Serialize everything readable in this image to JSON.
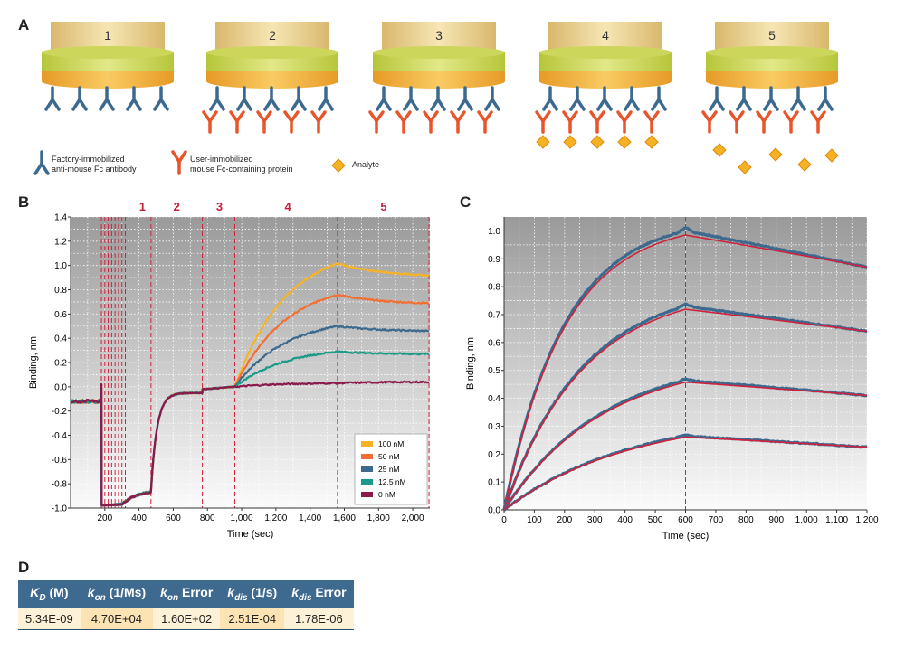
{
  "panels": {
    "a": "A",
    "b": "B",
    "c": "C",
    "d": "D"
  },
  "panel_a": {
    "steps": [
      "1",
      "2",
      "3",
      "4",
      "5"
    ],
    "legend": {
      "factory_line1": "Factory-immobilized",
      "factory_line2": "anti-mouse Fc antibody",
      "user_line1": "User-immobilized",
      "user_line2": "mouse Fc-containing protein",
      "analyte": "Analyte"
    },
    "colors": {
      "antibody": "#3c6a8e",
      "protein": "#e8552b",
      "analyte": "#f5b323"
    }
  },
  "chart_data": [
    {
      "id": "B",
      "type": "line",
      "xlabel": "Time (sec)",
      "ylabel": "Binding, nm",
      "xlim": [
        0,
        2100
      ],
      "ylim": [
        -1.0,
        1.4
      ],
      "xticks": [
        "200",
        "400",
        "600",
        "800",
        "1,000",
        "1,200",
        "1,400",
        "1,600",
        "1,800",
        "2,000"
      ],
      "xtick_values": [
        200,
        400,
        600,
        800,
        1000,
        1200,
        1400,
        1600,
        1800,
        2000
      ],
      "yticks": [
        "-1.0",
        "-0.8",
        "-0.6",
        "-0.4",
        "-0.2",
        "0.0",
        "0.2",
        "0.4",
        "0.6",
        "0.8",
        "1.0",
        "1.2",
        "1.4"
      ],
      "ytick_values": [
        -1.0,
        -0.8,
        -0.6,
        -0.4,
        -0.2,
        0.0,
        0.2,
        0.4,
        0.6,
        0.8,
        1.0,
        1.2,
        1.4
      ],
      "grid": true,
      "legend_position": "bottom-right",
      "step_labels": [
        {
          "label": "1",
          "x": 420
        },
        {
          "label": "2",
          "x": 620
        },
        {
          "label": "3",
          "x": 870
        },
        {
          "label": "4",
          "x": 1270
        },
        {
          "label": "5",
          "x": 1830
        }
      ],
      "step_boundaries": [
        0,
        180,
        200,
        220,
        240,
        260,
        280,
        300,
        320,
        470,
        770,
        960,
        1560,
        2095
      ],
      "association_start": 960,
      "dissociation_start": 1560,
      "series": [
        {
          "name": "100 nM",
          "color": "#f7b324",
          "plateau": 1.02,
          "end": 0.92
        },
        {
          "name": "50 nM",
          "color": "#f26f31",
          "plateau": 0.76,
          "end": 0.69
        },
        {
          "name": "25 nM",
          "color": "#3c6a8e",
          "plateau": 0.5,
          "end": 0.46
        },
        {
          "name": "12.5 nM",
          "color": "#1a9a87",
          "plateau": 0.29,
          "end": 0.27
        },
        {
          "name": "0 nM",
          "color": "#8a1a4c",
          "plateau": 0.03,
          "end": 0.04
        }
      ]
    },
    {
      "id": "C",
      "type": "line",
      "xlabel": "Time (sec)",
      "ylabel": "Binding, nm",
      "xlim": [
        0,
        1200
      ],
      "ylim": [
        0,
        1.05
      ],
      "xticks": [
        "0",
        "100",
        "200",
        "300",
        "400",
        "500",
        "600",
        "700",
        "800",
        "900",
        "1,000",
        "1,100",
        "1,200"
      ],
      "xtick_values": [
        0,
        100,
        200,
        300,
        400,
        500,
        600,
        700,
        800,
        900,
        1000,
        1100,
        1200
      ],
      "yticks": [
        "0.0",
        "0.1",
        "0.2",
        "0.3",
        "0.4",
        "0.5",
        "0.6",
        "0.7",
        "0.8",
        "0.9",
        "1.0"
      ],
      "ytick_values": [
        0,
        0.1,
        0.2,
        0.3,
        0.4,
        0.5,
        0.6,
        0.7,
        0.8,
        0.9,
        1.0
      ],
      "grid": true,
      "dissociation_start": 600,
      "series": [
        {
          "color_data": "#3c6a8e",
          "color_fit": "#d0213c",
          "peak": 1.0,
          "end": 0.87
        },
        {
          "color_data": "#3c6a8e",
          "color_fit": "#d0213c",
          "peak": 0.73,
          "end": 0.64
        },
        {
          "color_data": "#3c6a8e",
          "color_fit": "#d0213c",
          "peak": 0.465,
          "end": 0.41
        },
        {
          "color_data": "#3c6a8e",
          "color_fit": "#d0213c",
          "peak": 0.265,
          "end": 0.225
        }
      ]
    }
  ],
  "table": {
    "headers": [
      {
        "base": "K",
        "sub": "D",
        "rest": " (M)"
      },
      {
        "base": "k",
        "sub": "on",
        "rest": " (1/Ms)"
      },
      {
        "base": "k",
        "sub": "on",
        "rest": " Error"
      },
      {
        "base": "k",
        "sub": "dis",
        "rest": " (1/s)"
      },
      {
        "base": "k",
        "sub": "dis",
        "rest": " Error"
      }
    ],
    "values": [
      "5.34E-09",
      "4.70E+04",
      "1.60E+02",
      "2.51E-04",
      "1.78E-06"
    ]
  }
}
